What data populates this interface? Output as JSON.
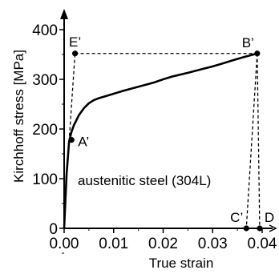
{
  "chart_data": {
    "type": "line",
    "xlabel": "True strain",
    "ylabel": "Kirchhoff stress [MPa]",
    "annotation": "austenitic steel (304L)",
    "xlim": [
      0,
      0.04
    ],
    "ylim": [
      0,
      400
    ],
    "x_ticks": [
      0.0,
      0.01,
      0.02,
      0.03,
      0.04
    ],
    "x_tick_labels": [
      "0.00",
      "0.01",
      "0.02",
      "0.03",
      "0.04"
    ],
    "y_ticks": [
      0,
      100,
      200,
      300,
      400
    ],
    "y_tick_labels": [
      "0",
      "100",
      "200",
      "300",
      "400"
    ],
    "series": [
      {
        "x": [
          0.0,
          0.0005,
          0.001,
          0.0015,
          0.002,
          0.003,
          0.004,
          0.005,
          0.006,
          0.007,
          0.008,
          0.01,
          0.012,
          0.015,
          0.018,
          0.02,
          0.022,
          0.025,
          0.028,
          0.03,
          0.032,
          0.034,
          0.036,
          0.0375,
          0.039
        ],
        "y": [
          0,
          110,
          175,
          195,
          208,
          228,
          242,
          252,
          258,
          262,
          265,
          271,
          277,
          285,
          293,
          300,
          306,
          313,
          321,
          326,
          332,
          338,
          344,
          348,
          352
        ]
      }
    ],
    "points": [
      {
        "label": "A’",
        "x": 0.0015,
        "y": 178,
        "label_pos": "right"
      },
      {
        "label": "B’",
        "x": 0.039,
        "y": 352,
        "label_pos": "top-left"
      },
      {
        "label": "E’",
        "x": 0.0022,
        "y": 352,
        "label_pos": "top"
      },
      {
        "label": "C’",
        "x": 0.0368,
        "y": 0,
        "label_pos": "top-left"
      },
      {
        "label": "D",
        "x": 0.0395,
        "y": 0,
        "label_pos": "top-right"
      }
    ],
    "dashed_lines": [
      {
        "from": [
          0.001,
          175
        ],
        "to": [
          0.0022,
          352
        ]
      },
      {
        "from": [
          0.0022,
          352
        ],
        "to": [
          0.039,
          352
        ]
      },
      {
        "from": [
          0.039,
          352
        ],
        "to": [
          0.0368,
          0
        ]
      },
      {
        "from": [
          0.039,
          352
        ],
        "to": [
          0.0395,
          0
        ]
      }
    ],
    "grid": false
  }
}
